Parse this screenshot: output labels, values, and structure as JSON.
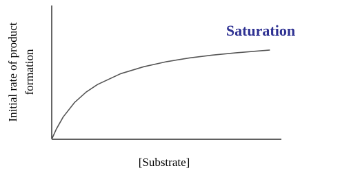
{
  "chart_data": {
    "type": "line",
    "annotation": "Saturation",
    "xlabel": "[Substrate]",
    "ylabel": [
      "Initial rate of product",
      "formation"
    ],
    "x": [
      0,
      2,
      5,
      10,
      15,
      20,
      30,
      40,
      50,
      60,
      70,
      80,
      95
    ],
    "values": [
      0,
      7.6,
      16.7,
      27.6,
      35.3,
      41.0,
      49.0,
      54.2,
      58.0,
      60.8,
      62.9,
      64.6,
      66.7
    ],
    "color": "#555555",
    "xlim": [
      0,
      100
    ],
    "ylim": [
      0,
      100
    ]
  }
}
